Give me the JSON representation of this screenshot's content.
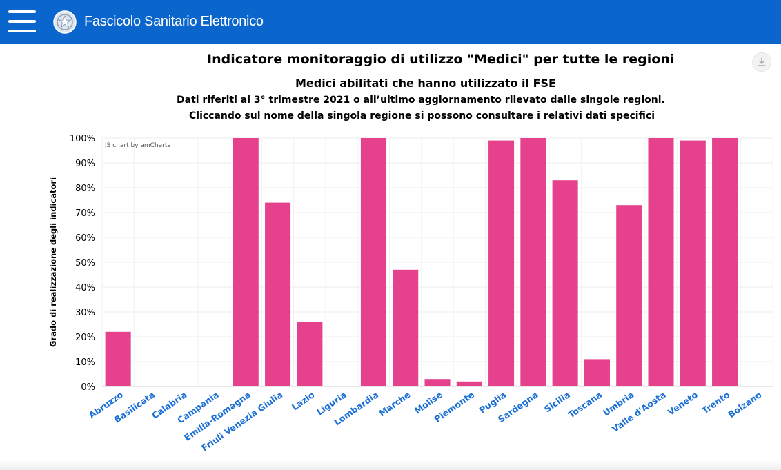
{
  "header": {
    "app_title": "Fascicolo Sanitario Elettronico",
    "menu_icon": "hamburger-menu-icon",
    "logo_icon": "emblem-logo-icon",
    "background_color": "#0a66cc"
  },
  "export_icon": "download-icon",
  "credit": "JS chart by amCharts",
  "chart_data": {
    "type": "bar",
    "title": "Indicatore monitoraggio di utilizzo \"Medici\" per tutte le regioni",
    "subtitle": "Medici abilitati che hanno utilizzato il FSE",
    "notes": [
      "Dati riferiti al 3° trimestre 2021 o all’ultimo aggiornamento rilevato dalle singole regioni.",
      "Cliccando sul nome della singola regione si possono consultare i relativi dati specifici"
    ],
    "ylabel": "Grado di realizzazione degli indicatori",
    "xlabel": "",
    "ylim": [
      0,
      100
    ],
    "yticks": [
      "0%",
      "10%",
      "20%",
      "30%",
      "40%",
      "50%",
      "60%",
      "70%",
      "80%",
      "90%",
      "100%"
    ],
    "grid": true,
    "bar_color": "#e5418d",
    "category_label_color": "#1a6fd6",
    "categories": [
      "Abruzzo",
      "Basilicata",
      "Calabria",
      "Campania",
      "Emilia-Romagna",
      "Friuli Venezia Giulia",
      "Lazio",
      "Liguria",
      "Lombardia",
      "Marche",
      "Molise",
      "Piemonte",
      "Puglia",
      "Sardegna",
      "Sicilia",
      "Toscana",
      "Umbria",
      "Valle d'Aosta",
      "Veneto",
      "Trento",
      "Bolzano"
    ],
    "values": [
      22,
      0,
      0,
      0,
      100,
      74,
      26,
      0,
      100,
      47,
      3,
      2,
      99,
      100,
      83,
      11,
      73,
      100,
      99,
      100,
      0
    ]
  }
}
